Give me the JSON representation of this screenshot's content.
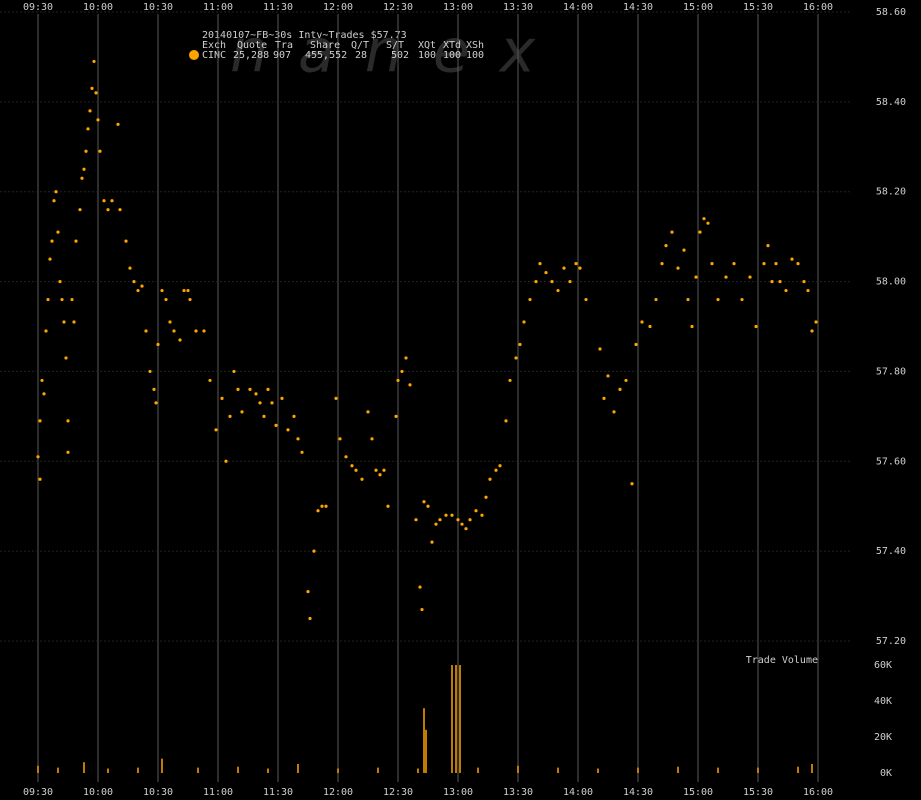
{
  "chart_data": [
    {
      "type": "scatter",
      "title": "20140107~FB~30s Intv~Trades $57.73",
      "watermark": "nanex",
      "legend_header": [
        "Exch",
        "Quote",
        "Tra",
        "Share",
        "Q/T",
        "S/T",
        "XQt",
        "XTd",
        "XSh"
      ],
      "legend_row": [
        "25,288",
        "907",
        "455,552",
        "28",
        "502",
        "100",
        "100",
        "100"
      ],
      "xlim": [
        "09:30",
        "16:00"
      ],
      "xticks": [
        "09:30",
        "10:00",
        "10:30",
        "11:00",
        "11:30",
        "12:00",
        "12:30",
        "13:00",
        "13:30",
        "14:00",
        "14:30",
        "15:00",
        "15:30",
        "16:00"
      ],
      "ylim": [
        57.2,
        58.6
      ],
      "yticks": [
        {
          "value": 57.2,
          "label": "57.20"
        },
        {
          "value": 57.4,
          "label": "57.40"
        },
        {
          "value": 57.6,
          "label": "57.60"
        },
        {
          "value": 57.8,
          "label": "57.80"
        },
        {
          "value": 58.0,
          "label": "58.00"
        },
        {
          "value": 58.2,
          "label": "58.20"
        },
        {
          "value": 58.4,
          "label": "58.40"
        },
        {
          "value": 58.6,
          "label": "58.60"
        }
      ],
      "grid": true,
      "x": [
        "09:30",
        "09:31",
        "09:31",
        "09:32",
        "09:33",
        "09:34",
        "09:35",
        "09:36",
        "09:37",
        "09:38",
        "09:39",
        "09:40",
        "09:41",
        "09:42",
        "09:43",
        "09:44",
        "09:45",
        "09:45",
        "09:47",
        "09:48",
        "09:49",
        "09:51",
        "09:52",
        "09:53",
        "09:54",
        "09:55",
        "09:56",
        "09:57",
        "09:58",
        "09:59",
        "10:00",
        "10:01",
        "10:03",
        "10:05",
        "10:07",
        "10:10",
        "10:11",
        "10:14",
        "10:16",
        "10:18",
        "10:20",
        "10:22",
        "10:24",
        "10:26",
        "10:28",
        "10:29",
        "10:30",
        "10:32",
        "10:34",
        "10:36",
        "10:38",
        "10:41",
        "10:43",
        "10:45",
        "10:46",
        "10:49",
        "10:53",
        "10:56",
        "10:59",
        "11:02",
        "11:04",
        "11:06",
        "11:08",
        "11:10",
        "11:12",
        "11:16",
        "11:19",
        "11:21",
        "11:23",
        "11:25",
        "11:27",
        "11:29",
        "11:32",
        "11:35",
        "11:38",
        "11:40",
        "11:42",
        "11:45",
        "11:46",
        "11:48",
        "11:50",
        "11:52",
        "11:54",
        "11:59",
        "12:01",
        "12:04",
        "12:07",
        "12:09",
        "12:12",
        "12:15",
        "12:17",
        "12:19",
        "12:21",
        "12:23",
        "12:25",
        "12:29",
        "12:30",
        "12:32",
        "12:34",
        "12:36",
        "12:39",
        "12:41",
        "12:42",
        "12:43",
        "12:45",
        "12:47",
        "12:49",
        "12:51",
        "12:54",
        "12:57",
        "13:00",
        "13:02",
        "13:04",
        "13:06",
        "13:09",
        "13:12",
        "13:14",
        "13:16",
        "13:19",
        "13:21",
        "13:24",
        "13:26",
        "13:29",
        "13:31",
        "13:33",
        "13:36",
        "13:39",
        "13:41",
        "13:44",
        "13:47",
        "13:50",
        "13:53",
        "13:56",
        "13:59",
        "14:01",
        "14:04",
        "14:11",
        "14:13",
        "14:15",
        "14:18",
        "14:21",
        "14:24",
        "14:27",
        "14:29",
        "14:32",
        "14:36",
        "14:39",
        "14:42",
        "14:44",
        "14:47",
        "14:50",
        "14:53",
        "14:55",
        "14:57",
        "14:59",
        "15:01",
        "15:03",
        "15:05",
        "15:07",
        "15:10",
        "15:14",
        "15:18",
        "15:22",
        "15:26",
        "15:29",
        "15:33",
        "15:35",
        "15:37",
        "15:39",
        "15:41",
        "15:44",
        "15:47",
        "15:50",
        "15:53",
        "15:55",
        "15:57",
        "15:59"
      ],
      "series": [
        {
          "name": "CINC",
          "color": "#ffa500",
          "values": [
            57.61,
            57.56,
            57.69,
            57.78,
            57.75,
            57.89,
            57.96,
            58.05,
            58.09,
            58.18,
            58.2,
            58.11,
            58.0,
            57.96,
            57.91,
            57.83,
            57.69,
            57.62,
            57.96,
            57.91,
            58.09,
            58.16,
            58.23,
            58.25,
            58.29,
            58.34,
            58.38,
            58.43,
            58.49,
            58.42,
            58.36,
            58.29,
            58.18,
            58.16,
            58.18,
            58.35,
            58.16,
            58.09,
            58.03,
            58.0,
            57.98,
            57.99,
            57.89,
            57.8,
            57.76,
            57.73,
            57.86,
            57.98,
            57.96,
            57.91,
            57.89,
            57.87,
            57.98,
            57.98,
            57.96,
            57.89,
            57.89,
            57.78,
            57.67,
            57.74,
            57.6,
            57.7,
            57.8,
            57.76,
            57.71,
            57.76,
            57.75,
            57.73,
            57.7,
            57.76,
            57.73,
            57.68,
            57.74,
            57.67,
            57.7,
            57.65,
            57.62,
            57.31,
            57.25,
            57.4,
            57.49,
            57.5,
            57.5,
            57.74,
            57.65,
            57.61,
            57.59,
            57.58,
            57.56,
            57.71,
            57.65,
            57.58,
            57.57,
            57.58,
            57.5,
            57.7,
            57.78,
            57.8,
            57.83,
            57.77,
            57.47,
            57.32,
            57.27,
            57.51,
            57.5,
            57.42,
            57.46,
            57.47,
            57.48,
            57.48,
            57.47,
            57.46,
            57.45,
            57.47,
            57.49,
            57.48,
            57.52,
            57.56,
            57.58,
            57.59,
            57.69,
            57.78,
            57.83,
            57.86,
            57.91,
            57.96,
            58.0,
            58.04,
            58.02,
            58.0,
            57.98,
            58.03,
            58.0,
            58.04,
            58.03,
            57.96,
            57.85,
            57.74,
            57.79,
            57.71,
            57.76,
            57.78,
            57.55,
            57.86,
            57.91,
            57.9,
            57.96,
            58.04,
            58.08,
            58.11,
            58.03,
            58.07,
            57.96,
            57.9,
            58.01,
            58.11,
            58.14,
            58.13,
            58.04,
            57.96,
            58.01,
            58.04,
            57.96,
            58.01,
            57.9,
            58.04,
            58.08,
            58.0,
            58.04,
            58.0,
            57.98,
            58.05,
            58.04,
            58.0,
            57.98,
            57.89,
            57.91
          ]
        }
      ]
    },
    {
      "type": "bar",
      "title": "Trade Volume",
      "color": "#ffa500",
      "xlim": [
        "09:30",
        "16:00"
      ],
      "ylim": [
        0,
        60000
      ],
      "yticks": [
        {
          "value": 0,
          "label": "0K"
        },
        {
          "value": 20000,
          "label": "20K"
        },
        {
          "value": 40000,
          "label": "40K"
        },
        {
          "value": 60000,
          "label": "60K"
        }
      ],
      "x": [
        "09:30",
        "09:40",
        "09:53",
        "10:05",
        "10:20",
        "10:32",
        "10:50",
        "11:10",
        "11:25",
        "11:40",
        "12:00",
        "12:20",
        "12:40",
        "12:43",
        "12:44",
        "12:57",
        "12:59",
        "13:01",
        "13:10",
        "13:30",
        "13:50",
        "14:10",
        "14:30",
        "14:50",
        "15:10",
        "15:30",
        "15:50",
        "15:57"
      ],
      "values": [
        4000,
        3000,
        6000,
        2500,
        3000,
        8000,
        3000,
        3500,
        2500,
        5000,
        2500,
        3000,
        2500,
        36000,
        24000,
        60000,
        60000,
        60000,
        3000,
        4000,
        3000,
        2500,
        3000,
        3500,
        3000,
        3000,
        3500,
        5000
      ]
    }
  ]
}
